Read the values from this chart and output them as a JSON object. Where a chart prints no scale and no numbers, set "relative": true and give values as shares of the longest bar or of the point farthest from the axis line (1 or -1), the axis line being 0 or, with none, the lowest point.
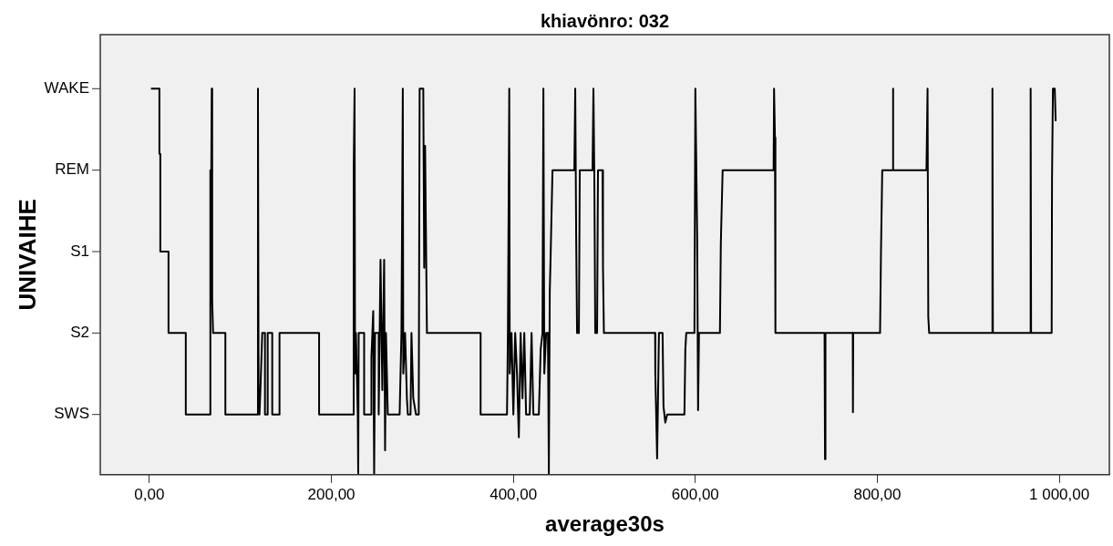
{
  "chart_data": {
    "type": "line",
    "title": "khiavönro: 032",
    "xlabel": "average30s",
    "ylabel": "UNIVAIHE",
    "relative": true,
    "xlim": [
      -54,
      1055
    ],
    "xticks": [
      {
        "value": 0,
        "label": "0,00"
      },
      {
        "value": 200,
        "label": "200,00"
      },
      {
        "value": 400,
        "label": "400,00"
      },
      {
        "value": 600,
        "label": "600,00"
      },
      {
        "value": 800,
        "label": "800,00"
      },
      {
        "value": 1000,
        "label": "1 000,00"
      }
    ],
    "annotations": [
      "WAKE",
      "REM",
      "S1",
      "S2",
      "SWS"
    ],
    "legend": false,
    "series": [
      {
        "color": "#000000",
        "x": [
          1.7,
          11,
          11,
          12,
          12,
          21,
          21,
          40,
          40,
          67,
          67,
          68,
          68.5,
          69,
          70,
          83.5,
          83.5,
          119,
          119.3,
          120,
          121,
          122,
          124,
          127,
          127,
          130,
          130,
          135,
          135,
          143,
          143,
          186.5,
          186.5,
          224,
          224.5,
          225.5,
          226,
          227,
          229,
          229.5,
          230,
          236,
          236,
          244,
          244,
          246,
          247,
          248,
          252,
          252,
          254,
          256,
          258,
          259,
          260,
          262,
          275,
          277,
          278.5,
          279,
          281,
          283,
          284,
          287,
          288,
          290,
          293,
          296,
          297,
          301,
          302,
          303,
          305,
          364,
          364,
          393,
          394,
          395.5,
          396,
          398,
          400,
          402,
          404,
          406,
          408,
          410,
          412,
          414,
          418,
          420,
          422,
          428,
          430,
          432,
          433,
          434,
          436,
          438,
          439,
          440,
          441,
          443,
          467,
          468,
          469,
          470,
          472,
          473,
          487,
          488,
          489,
          490,
          492,
          493,
          498,
          498.5,
          499.5,
          555.8,
          556,
          558,
          560,
          564,
          565,
          567,
          569,
          588,
          589,
          590,
          599,
          600,
          602,
          603,
          604,
          627,
          628,
          630,
          686,
          686.5,
          687.5,
          688,
          742,
          742.5,
          743,
          773,
          773.2,
          773.5,
          803,
          804,
          805.4,
          817,
          817.2,
          817.5,
          854,
          855.2,
          856,
          857,
          926,
          926.5,
          927,
          968,
          968.5,
          969,
          991.6,
          992,
          993,
          995,
          996
        ],
        "values": [
          1,
          1,
          0.831,
          0.831,
          0.578,
          0.578,
          0.367,
          0.367,
          0.156,
          0.156,
          0.789,
          0.789,
          1,
          0.451,
          0.367,
          0.367,
          0.156,
          0.156,
          1,
          0.198,
          0.156,
          0.219,
          0.367,
          0.367,
          0.156,
          0.156,
          0.367,
          0.367,
          0.156,
          0.156,
          0.367,
          0.367,
          0.156,
          0.156,
          0.789,
          1,
          0.262,
          0.367,
          0.156,
          0,
          0.367,
          0.367,
          0.156,
          0.156,
          0.304,
          0.424,
          0,
          0.367,
          0.367,
          0.156,
          0.557,
          0.219,
          0.557,
          0.063,
          0.367,
          0.156,
          0.156,
          0.367,
          1,
          0.262,
          0.367,
          0.198,
          0.156,
          0.156,
          0.367,
          0.198,
          0.156,
          0.156,
          1,
          1,
          0.536,
          0.852,
          0.367,
          0.367,
          0.156,
          0.156,
          0.367,
          1,
          0.262,
          0.367,
          0.156,
          0.367,
          0.262,
          0.097,
          0.367,
          0.198,
          0.367,
          0.156,
          0.156,
          0.367,
          0.156,
          0.156,
          0.325,
          0.367,
          1,
          0.262,
          0.367,
          0.367,
          0,
          0.473,
          0.572,
          0.789,
          0.789,
          1,
          0.62,
          0.367,
          0.367,
          0.789,
          0.789,
          1,
          0.768,
          0.367,
          0.367,
          0.789,
          0.789,
          0.536,
          0.367,
          0.367,
          0.262,
          0.042,
          0.367,
          0.367,
          0.177,
          0.135,
          0.156,
          0.156,
          0.325,
          0.367,
          0.367,
          1,
          0.62,
          0.167,
          0.367,
          0.367,
          0.599,
          0.789,
          0.789,
          1,
          0.873,
          0.367,
          0.367,
          0.04,
          0.367,
          0.367,
          0.162,
          0.367,
          0.367,
          0.574,
          0.789,
          0.789,
          1,
          0.789,
          0.789,
          1,
          0.409,
          0.367,
          0.367,
          1,
          0.367,
          0.367,
          1,
          0.367,
          0.367,
          0.768,
          1,
          1,
          0.916
        ]
      }
    ]
  }
}
